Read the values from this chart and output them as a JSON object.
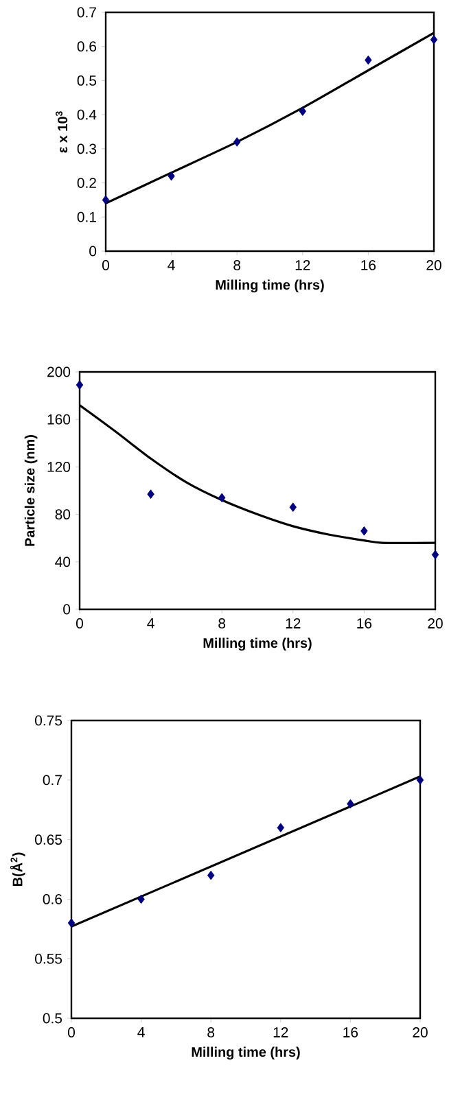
{
  "chart_data": [
    {
      "type": "scatter",
      "xlabel": "Milling time (hrs)",
      "ylabel": "ε x 10$^{3}$",
      "marker": "diamond",
      "xlim": [
        0,
        20
      ],
      "xticks": [
        0,
        4,
        8,
        12,
        16,
        20
      ],
      "ylim": [
        0,
        0.7
      ],
      "yticks": [
        0,
        0.1,
        0.2,
        0.3,
        0.4,
        0.5,
        0.6,
        0.7
      ],
      "series": [
        {
          "color": "#000080",
          "x": [
            0,
            4,
            8,
            12,
            16,
            20
          ],
          "values": [
            0.15,
            0.22,
            0.32,
            0.41,
            0.56,
            0.62
          ]
        },
        {
          "type": "line",
          "marker": "none",
          "color": "#000000",
          "x": [
            0,
            4,
            8,
            12,
            16,
            20
          ],
          "values": [
            0.14,
            0.23,
            0.32,
            0.42,
            0.53,
            0.64
          ]
        }
      ]
    },
    {
      "type": "scatter",
      "xlabel": "Milling time (hrs)",
      "ylabel": "Particle size (nm)",
      "marker": "diamond",
      "xlim": [
        0,
        20
      ],
      "xticks": [
        0,
        4,
        8,
        12,
        16,
        20
      ],
      "ylim": [
        0,
        200
      ],
      "yticks": [
        0,
        40,
        80,
        120,
        160,
        200
      ],
      "series": [
        {
          "color": "#000080",
          "x": [
            0,
            4,
            8,
            12,
            16,
            20
          ],
          "values": [
            189,
            97,
            94,
            86,
            66,
            46
          ]
        },
        {
          "type": "line",
          "marker": "none",
          "color": "#000000",
          "x": [
            0,
            2,
            4,
            6,
            8,
            10,
            12,
            14,
            16,
            17,
            20
          ],
          "values": [
            172,
            150,
            127,
            107,
            92,
            80,
            70,
            63,
            58,
            56,
            56
          ]
        }
      ]
    },
    {
      "type": "scatter",
      "xlabel": "Milling time (hrs)",
      "ylabel": "B(Å$^{2}$)",
      "marker": "diamond",
      "xlim": [
        0,
        20
      ],
      "xticks": [
        0,
        4,
        8,
        12,
        16,
        20
      ],
      "ylim": [
        0.5,
        0.75
      ],
      "yticks": [
        0.5,
        0.55,
        0.6,
        0.65,
        0.7,
        0.75
      ],
      "series": [
        {
          "color": "#000080",
          "x": [
            0,
            4,
            8,
            12,
            16,
            20
          ],
          "values": [
            0.58,
            0.6,
            0.62,
            0.66,
            0.68,
            0.7
          ]
        },
        {
          "type": "line",
          "marker": "none",
          "color": "#000000",
          "x": [
            0,
            20
          ],
          "values": [
            0.577,
            0.703
          ]
        }
      ]
    }
  ]
}
